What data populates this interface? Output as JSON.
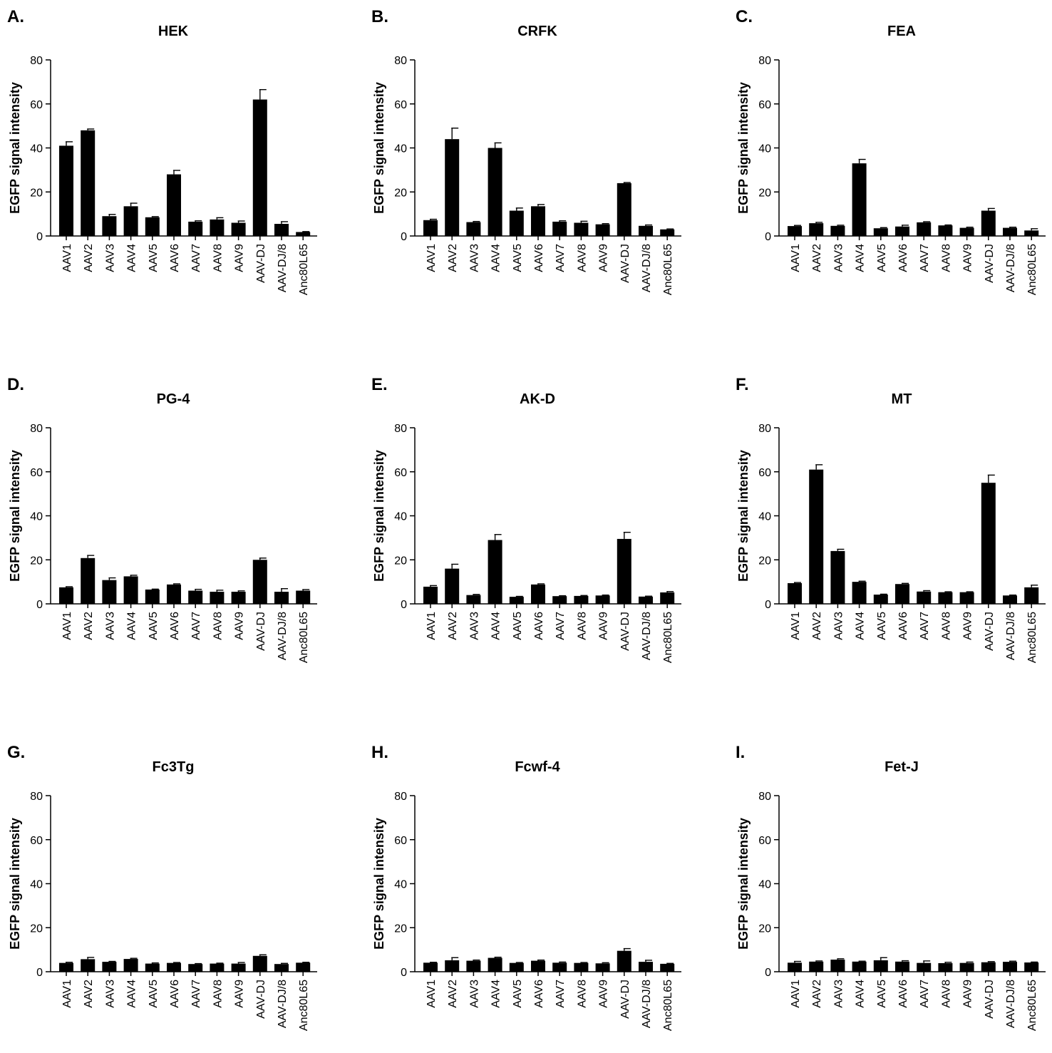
{
  "chart_data": [
    {
      "type": "bar",
      "panel": "A.",
      "title": "HEK",
      "ylabel": "EGFP signal intensity",
      "ylim": [
        0,
        80
      ],
      "yticks": [
        0,
        20,
        40,
        60,
        80
      ],
      "categories": [
        "AAV1",
        "AAV2",
        "AAV3",
        "AAV4",
        "AAV5",
        "AAV6",
        "AAV7",
        "AAV8",
        "AAV9",
        "AAV-DJ",
        "AAV-DJ/8",
        "Anc80L65"
      ],
      "values": [
        41,
        48,
        9,
        13.5,
        8.5,
        28,
        6.5,
        7.5,
        6,
        62,
        5.5,
        1.8
      ],
      "errors": [
        1.8,
        0.6,
        0.8,
        1.4,
        0.3,
        1.8,
        0.4,
        0.8,
        0.8,
        4.5,
        1.0,
        0.2
      ]
    },
    {
      "type": "bar",
      "panel": "B.",
      "title": "CRFK",
      "ylabel": "EGFP signal intensity",
      "ylim": [
        0,
        80
      ],
      "yticks": [
        0,
        20,
        40,
        60,
        80
      ],
      "categories": [
        "AAV1",
        "AAV2",
        "AAV3",
        "AAV4",
        "AAV5",
        "AAV6",
        "AAV7",
        "AAV8",
        "AAV9",
        "AAV-DJ",
        "AAV-DJ/8",
        "Anc80L65"
      ],
      "values": [
        7.2,
        44,
        6.3,
        40,
        11.5,
        13.5,
        6.5,
        6,
        5.3,
        24,
        4.6,
        3
      ],
      "errors": [
        0.4,
        5,
        0.3,
        2.3,
        1.2,
        0.8,
        0.4,
        0.7,
        0.3,
        0.3,
        0.4,
        0.2
      ]
    },
    {
      "type": "bar",
      "panel": "C.",
      "title": "FEA",
      "ylabel": "EGFP signal intensity",
      "ylim": [
        0,
        80
      ],
      "yticks": [
        0,
        20,
        40,
        60,
        80
      ],
      "categories": [
        "AAV1",
        "AAV2",
        "AAV3",
        "AAV4",
        "AAV5",
        "AAV6",
        "AAV7",
        "AAV8",
        "AAV9",
        "AAV-DJ",
        "AAV-DJ/8",
        "Anc80L65"
      ],
      "values": [
        4.5,
        5.8,
        4.6,
        33,
        3.5,
        4.3,
        6.2,
        4.8,
        3.7,
        11.5,
        3.7,
        2.5
      ],
      "errors": [
        0.3,
        0.4,
        0.3,
        1.8,
        0.3,
        0.6,
        0.3,
        0.2,
        0.3,
        1.0,
        0.3,
        0.8
      ]
    },
    {
      "type": "bar",
      "panel": "D.",
      "title": "PG-4",
      "ylabel": "EGFP signal intensity",
      "ylim": [
        0,
        80
      ],
      "yticks": [
        0,
        20,
        40,
        60,
        80
      ],
      "categories": [
        "AAV1",
        "AAV2",
        "AAV3",
        "AAV4",
        "AAV5",
        "AAV6",
        "AAV7",
        "AAV8",
        "AAV9",
        "AAV-DJ",
        "AAV-DJ/8",
        "Anc80L65"
      ],
      "values": [
        7.5,
        20.8,
        10.8,
        12.5,
        6.5,
        8.8,
        6,
        5.5,
        5.5,
        20,
        5.5,
        6
      ],
      "errors": [
        0.3,
        1.2,
        1.0,
        0.5,
        0.2,
        0.3,
        0.6,
        0.7,
        0.4,
        0.8,
        1.4,
        0.5
      ]
    },
    {
      "type": "bar",
      "panel": "E.",
      "title": "AK-D",
      "ylabel": "EGFP signal intensity",
      "ylim": [
        0,
        80
      ],
      "yticks": [
        0,
        20,
        40,
        60,
        80
      ],
      "categories": [
        "AAV1",
        "AAV2",
        "AAV3",
        "AAV4",
        "AAV5",
        "AAV6",
        "AAV7",
        "AAV8",
        "AAV9",
        "AAV-DJ",
        "AAV-DJ/8",
        "Anc80L65"
      ],
      "values": [
        7.8,
        16,
        4,
        29,
        3.2,
        8.8,
        3.5,
        3.6,
        3.8,
        29.5,
        3.3,
        5.2
      ],
      "errors": [
        0.5,
        2,
        0.3,
        2.5,
        0.2,
        0.3,
        0.2,
        0.2,
        0.2,
        3,
        0.2,
        0.4
      ]
    },
    {
      "type": "bar",
      "panel": "F.",
      "title": "MT",
      "ylabel": "EGFP signal intensity",
      "ylim": [
        0,
        80
      ],
      "yticks": [
        0,
        20,
        40,
        60,
        80
      ],
      "categories": [
        "AAV1",
        "AAV2",
        "AAV3",
        "AAV4",
        "AAV5",
        "AAV6",
        "AAV7",
        "AAV8",
        "AAV9",
        "AAV-DJ",
        "AAV-DJ/8",
        "Anc80L65"
      ],
      "values": [
        9.4,
        61,
        24,
        10,
        4.2,
        9,
        5.6,
        5.3,
        5.3,
        55,
        3.8,
        7.5
      ],
      "errors": [
        0.3,
        2.2,
        0.8,
        0.3,
        0.2,
        0.3,
        0.4,
        0.2,
        0.2,
        3.5,
        0.2,
        1.0
      ]
    },
    {
      "type": "bar",
      "panel": "G.",
      "title": "Fc3Tg",
      "ylabel": "EGFP signal intensity",
      "ylim": [
        0,
        80
      ],
      "yticks": [
        0,
        20,
        40,
        60,
        80
      ],
      "categories": [
        "AAV1",
        "AAV2",
        "AAV3",
        "AAV4",
        "AAV5",
        "AAV6",
        "AAV7",
        "AAV8",
        "AAV9",
        "AAV-DJ",
        "AAV-DJ/8",
        "Anc80L65"
      ],
      "values": [
        4,
        5.7,
        4.5,
        5.8,
        3.7,
        4,
        3.5,
        3.7,
        3.7,
        7.2,
        3.5,
        4.1
      ],
      "errors": [
        0.3,
        0.8,
        0.2,
        0.3,
        0.3,
        0.2,
        0.2,
        0.2,
        0.5,
        0.5,
        0.3,
        0.2
      ]
    },
    {
      "type": "bar",
      "panel": "H.",
      "title": "Fcwf-4",
      "ylabel": "EGFP signal intensity",
      "ylim": [
        0,
        80
      ],
      "yticks": [
        0,
        20,
        40,
        60,
        80
      ],
      "categories": [
        "AAV1",
        "AAV2",
        "AAV3",
        "AAV4",
        "AAV5",
        "AAV6",
        "AAV7",
        "AAV8",
        "AAV9",
        "AAV-DJ",
        "AAV-DJ/8",
        "Anc80L65"
      ],
      "values": [
        4.1,
        5.2,
        5,
        6.3,
        4,
        5,
        4.1,
        4,
        3.8,
        9.5,
        4.5,
        3.6
      ],
      "errors": [
        0.2,
        1.2,
        0.3,
        0.3,
        0.2,
        0.3,
        0.3,
        0.2,
        0.3,
        1.0,
        0.7,
        0.2
      ]
    },
    {
      "type": "bar",
      "panel": "I.",
      "title": "Fet-J",
      "ylabel": "EGFP signal intensity",
      "ylim": [
        0,
        80
      ],
      "yticks": [
        0,
        20,
        40,
        60,
        80
      ],
      "categories": [
        "AAV1",
        "AAV2",
        "AAV3",
        "AAV4",
        "AAV5",
        "AAV6",
        "AAV7",
        "AAV8",
        "AAV9",
        "AAV-DJ",
        "AAV-DJ/8",
        "Anc80L65"
      ],
      "values": [
        4.1,
        4.6,
        5.5,
        4.6,
        5.2,
        4.6,
        4,
        3.9,
        4,
        4.3,
        4.5,
        4.2
      ],
      "errors": [
        0.6,
        0.3,
        0.4,
        0.2,
        1.2,
        0.4,
        0.9,
        0.4,
        0.4,
        0.3,
        0.3,
        0.2
      ]
    }
  ]
}
